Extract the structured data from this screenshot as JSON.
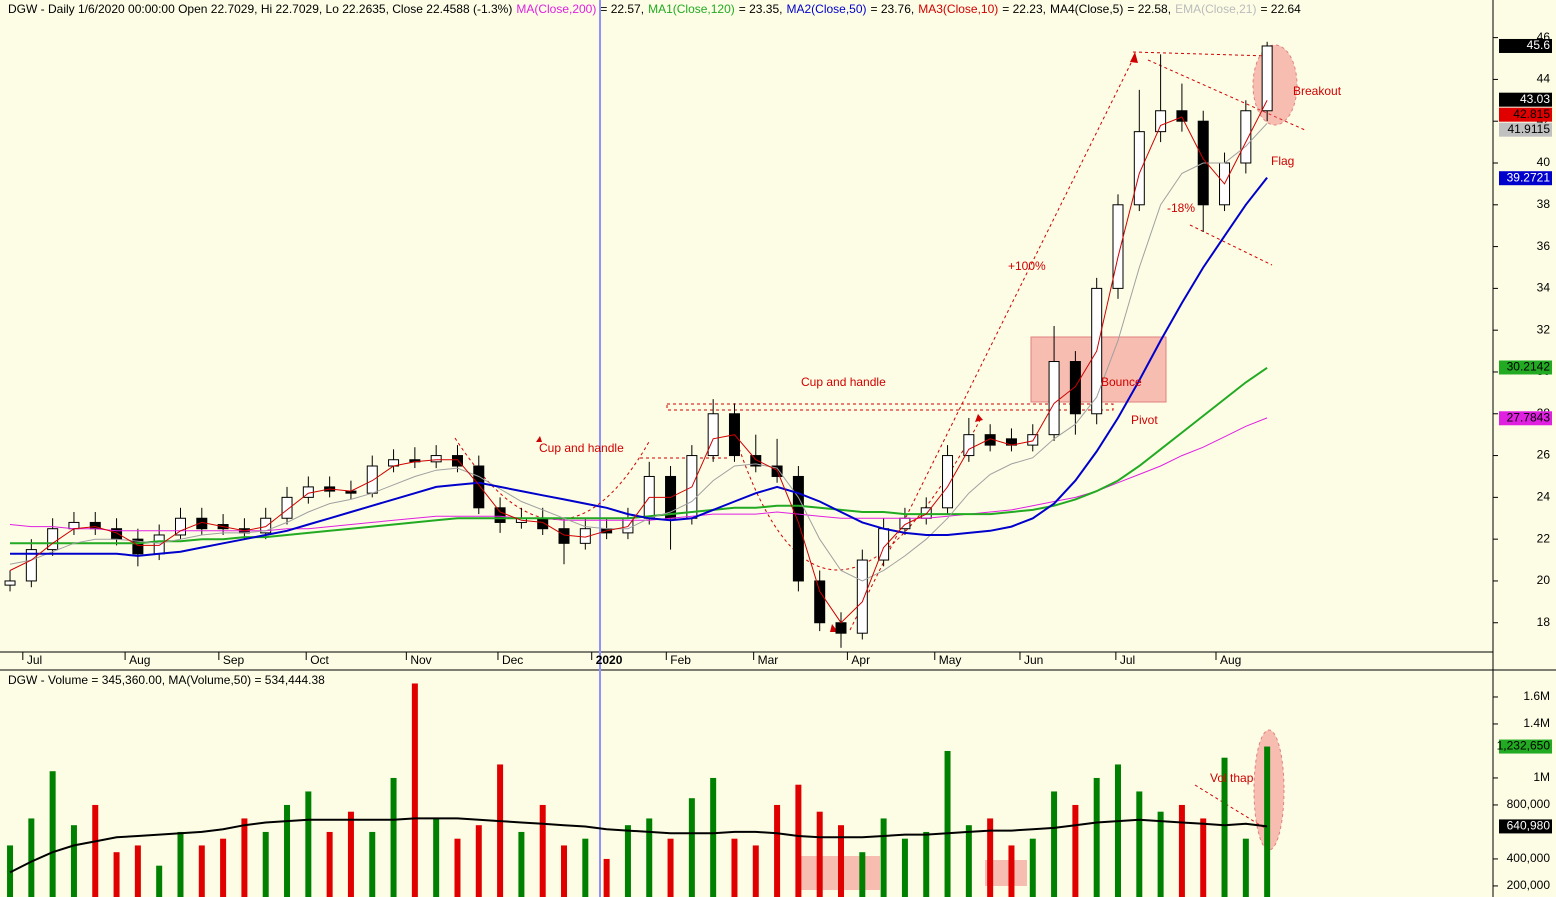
{
  "chart_data": [
    {
      "type": "candlestick",
      "header_items": [
        {
          "text": "DGW - Daily 1/6/2020 00:00:00 Open 22.7029, Hi 22.7029, Lo 22.2635, Close 22.4588 (-1.3%)",
          "color": "#000000"
        },
        {
          "text": "MA(Close,200)",
          "color": "#e020e0"
        },
        {
          "text": "= 22.57,",
          "color": "#000000"
        },
        {
          "text": "MA1(Close,120)",
          "color": "#22aa22"
        },
        {
          "text": "= 23.35,",
          "color": "#000000"
        },
        {
          "text": "MA2(Close,50)",
          "color": "#0000cc"
        },
        {
          "text": "= 23.76,",
          "color": "#000000"
        },
        {
          "text": "MA3(Close,10)",
          "color": "#d00000"
        },
        {
          "text": "= 22.23,",
          "color": "#000000"
        },
        {
          "text": "MA4(Close,5)",
          "color": "#000000"
        },
        {
          "text": "= 22.58,",
          "color": "#000000"
        },
        {
          "text": "EMA(Close,21)",
          "color": "#bbbbbb"
        },
        {
          "text": "= 22.64",
          "color": "#000000"
        }
      ],
      "x": [
        0,
        1,
        2,
        3,
        4,
        5,
        6,
        7,
        8,
        9,
        10,
        11,
        12,
        13,
        14,
        15,
        16,
        17,
        18,
        19,
        20,
        21,
        22,
        23,
        24,
        25,
        26,
        27,
        28,
        29,
        30,
        31,
        32,
        33,
        34,
        35,
        36,
        37,
        38,
        39,
        40,
        41,
        42,
        43,
        44,
        45,
        46,
        47,
        48,
        49,
        50,
        51,
        52,
        53,
        54,
        55,
        56,
        57,
        58,
        59
      ],
      "open": [
        19.8,
        20,
        21.5,
        22.5,
        22.8,
        22.5,
        22,
        21.3,
        22.2,
        23,
        22.7,
        22.5,
        22.3,
        23,
        24,
        24.5,
        24.3,
        24.2,
        25.5,
        25.8,
        25.7,
        26,
        25.5,
        23.5,
        22.8,
        23,
        22.5,
        21.8,
        22.5,
        22.3,
        23,
        25,
        23,
        26,
        28,
        26,
        25.5,
        25,
        20,
        18,
        17.5,
        21,
        22.5,
        23,
        23.5,
        26,
        27,
        26.8,
        26.5,
        27,
        30.5,
        28,
        34,
        38,
        41.5,
        42.5,
        42,
        38,
        40,
        42.5
      ],
      "high": [
        20.5,
        22,
        23,
        23.3,
        23.3,
        23,
        22.5,
        22.7,
        23.5,
        23.5,
        23.2,
        23,
        23.5,
        24.5,
        25,
        25,
        24.8,
        26,
        26.3,
        26.4,
        26.5,
        26.5,
        26,
        24,
        23.5,
        23.5,
        23,
        23,
        23,
        23.5,
        25.7,
        25.5,
        26.5,
        28.7,
        28.5,
        27,
        26.8,
        25.5,
        20.5,
        18.5,
        21.5,
        23,
        23.5,
        24,
        26.5,
        27.8,
        27.5,
        27.3,
        27.5,
        32.2,
        31,
        34.5,
        38.5,
        43.5,
        45.2,
        43.8,
        42.5,
        40.5,
        43,
        45.8
      ],
      "low": [
        19.5,
        19.7,
        21.2,
        22.2,
        22.2,
        21.7,
        20.7,
        21,
        22,
        22.2,
        22.2,
        22,
        22,
        22.7,
        23.7,
        24,
        23.9,
        24,
        25.2,
        25.4,
        25.4,
        25.2,
        23.2,
        22.3,
        22.5,
        22.2,
        20.8,
        21.5,
        22,
        22,
        22.7,
        21.5,
        22.7,
        25.7,
        25.7,
        25.2,
        24.7,
        19.5,
        17.6,
        16.8,
        17.2,
        20.7,
        22.2,
        22.7,
        23.2,
        25.7,
        26.2,
        26.2,
        26.2,
        26.7,
        27,
        27.5,
        33.5,
        37.7,
        41,
        41.5,
        36.7,
        37.7,
        39.5,
        42
      ],
      "close": [
        20,
        21.5,
        22.5,
        22.8,
        22.5,
        22,
        21.3,
        22.2,
        23,
        22.5,
        22.5,
        22.3,
        23,
        24,
        24.5,
        24.3,
        24.2,
        25.5,
        25.8,
        25.7,
        26,
        25.5,
        23.5,
        22.8,
        23,
        22.5,
        21.8,
        22.5,
        22.3,
        23,
        25,
        23,
        26,
        28,
        26,
        25.5,
        25,
        20,
        18,
        17.5,
        21,
        22.5,
        23,
        23.5,
        26,
        27,
        26.5,
        26.5,
        27,
        30.5,
        28,
        34,
        38,
        41.5,
        42.5,
        42,
        38,
        40,
        42.5,
        45.6
      ],
      "up_color": "#ffffff",
      "down_color": "#000000",
      "wick_color": "#000000",
      "series": [
        {
          "color": "#e020e0",
          "width": 1,
          "values": [
            22.7,
            22.6,
            22.6,
            22.5,
            22.5,
            22.4,
            22.4,
            22.4,
            22.4,
            22.4,
            22.4,
            22.4,
            22.4,
            22.5,
            22.5,
            22.6,
            22.7,
            22.8,
            22.9,
            23,
            23.1,
            23.1,
            23.1,
            23.1,
            23,
            23,
            22.9,
            22.9,
            22.9,
            22.9,
            22.9,
            23,
            23.1,
            23.2,
            23.2,
            23.2,
            23.3,
            23.2,
            23.1,
            23,
            23,
            23,
            23,
            23,
            23.1,
            23.2,
            23.3,
            23.4,
            23.6,
            23.8,
            24,
            24.3,
            24.7,
            25.1,
            25.5,
            26,
            26.4,
            26.9,
            27.4,
            27.8
          ]
        },
        {
          "color": "#22aa22",
          "width": 2,
          "values": [
            21.8,
            21.8,
            21.8,
            21.8,
            21.8,
            21.8,
            21.8,
            21.9,
            21.9,
            22,
            22,
            22.1,
            22.1,
            22.2,
            22.3,
            22.4,
            22.5,
            22.6,
            22.7,
            22.8,
            22.9,
            23,
            23,
            23,
            23,
            23,
            23,
            23,
            23,
            23,
            23.1,
            23.2,
            23.3,
            23.4,
            23.5,
            23.5,
            23.6,
            23.6,
            23.5,
            23.4,
            23.3,
            23.3,
            23.2,
            23.2,
            23.2,
            23.2,
            23.2,
            23.3,
            23.4,
            23.6,
            23.9,
            24.3,
            24.8,
            25.5,
            26.3,
            27.1,
            27.9,
            28.7,
            29.5,
            30.2
          ]
        },
        {
          "color": "#a0a0a0",
          "width": 1,
          "values": [
            20.8,
            21,
            21.4,
            21.8,
            22,
            22,
            21.9,
            21.8,
            22,
            22.2,
            22.3,
            22.3,
            22.4,
            22.8,
            23.3,
            23.7,
            23.9,
            24.2,
            24.6,
            25,
            25.3,
            25.4,
            25,
            24.4,
            23.8,
            23.4,
            23,
            22.6,
            22.5,
            22.5,
            23,
            23.3,
            23.8,
            24.8,
            25.5,
            25.6,
            25.4,
            24,
            22,
            20.5,
            20,
            20.5,
            21.2,
            22,
            23,
            24.2,
            25.1,
            25.6,
            25.9,
            26.8,
            27.5,
            28.8,
            31.5,
            35,
            38,
            39.5,
            40,
            40,
            40.8,
            41.9
          ]
        },
        {
          "color": "#0000cc",
          "width": 2,
          "values": [
            21.3,
            21.3,
            21.3,
            21.3,
            21.3,
            21.3,
            21.2,
            21.3,
            21.4,
            21.6,
            21.8,
            22,
            22.2,
            22.4,
            22.7,
            23,
            23.3,
            23.6,
            23.9,
            24.2,
            24.5,
            24.6,
            24.7,
            24.5,
            24.3,
            24.1,
            23.9,
            23.7,
            23.5,
            23.2,
            23,
            22.9,
            23,
            23.4,
            23.8,
            24.2,
            24.5,
            24.2,
            23.8,
            23.3,
            22.8,
            22.5,
            22.3,
            22.2,
            22.2,
            22.3,
            22.4,
            22.6,
            23,
            23.7,
            24.8,
            26.2,
            27.8,
            29.6,
            31.5,
            33.3,
            35,
            36.5,
            38,
            39.3
          ]
        },
        {
          "color": "#d00000",
          "width": 1,
          "values": [
            20.5,
            21,
            21.8,
            22.5,
            22.6,
            22.3,
            21.7,
            21.7,
            22.4,
            22.8,
            22.6,
            22.4,
            22.6,
            23.4,
            24.2,
            24.4,
            24.3,
            24.8,
            25.5,
            25.7,
            25.8,
            25.8,
            24.6,
            23.3,
            22.9,
            22.8,
            22.2,
            22.1,
            22.4,
            22.6,
            24,
            24,
            24.5,
            26.8,
            27,
            25.8,
            25.3,
            22.8,
            19.5,
            18,
            19,
            21.6,
            22.7,
            23.2,
            24.5,
            26.3,
            26.8,
            26.5,
            26.7,
            28.5,
            29.3,
            31,
            35.5,
            39.5,
            41.8,
            42.2,
            40.2,
            39,
            41,
            43
          ]
        }
      ],
      "xlim": [
        -0.33,
        69.6
      ],
      "xticks": [
        {
          "value": 0.6,
          "label": "Jul"
        },
        {
          "value": 5.4,
          "label": "Aug"
        },
        {
          "value": 9.8,
          "label": "Sep"
        },
        {
          "value": 13.9,
          "label": "Oct"
        },
        {
          "value": 18.6,
          "label": "Nov"
        },
        {
          "value": 22.9,
          "label": "Dec"
        },
        {
          "value": 27.3,
          "label": "2020"
        },
        {
          "value": 30.8,
          "label": "Feb"
        },
        {
          "value": 34.9,
          "label": "Mar"
        },
        {
          "value": 39.3,
          "label": "Apr"
        },
        {
          "value": 43.4,
          "label": "May"
        },
        {
          "value": 47.4,
          "label": "Jun"
        },
        {
          "value": 51.9,
          "label": "Jul"
        },
        {
          "value": 56.6,
          "label": "Aug"
        }
      ],
      "ylim": [
        16.6,
        47.8
      ],
      "yticks": [
        18,
        20,
        22,
        24,
        26,
        28,
        30,
        32,
        34,
        36,
        38,
        40,
        42,
        44,
        46
      ],
      "markers": [
        {
          "value": 45.6,
          "bg": "#000000",
          "fg": "#ffffff"
        },
        {
          "value": 43.03,
          "bg": "#000000",
          "fg": "#ffffff"
        },
        {
          "value": 42.815,
          "bg": "#e00000",
          "fg": "#000000"
        },
        {
          "value": 41.9115,
          "bg": "#c0c0c0",
          "fg": "#000000"
        },
        {
          "value": 39.2721,
          "bg": "#0000cc",
          "fg": "#ffffff"
        },
        {
          "value": 30.2142,
          "bg": "#22aa22",
          "fg": "#000000"
        },
        {
          "value": 27.7843,
          "bg": "#e020e0",
          "fg": "#000000"
        }
      ],
      "annotations": [
        "Cup and handle",
        "Cup and handle",
        "+100%",
        "-18%",
        "Flag",
        "Breakout",
        "Bounce",
        "Pivot"
      ]
    },
    {
      "type": "bar",
      "title": "DGW - Volume = 345,360.00, MA(Volume,50) = 534,444.38",
      "x": [
        0,
        1,
        2,
        3,
        4,
        5,
        6,
        7,
        8,
        9,
        10,
        11,
        12,
        13,
        14,
        15,
        16,
        17,
        18,
        19,
        20,
        21,
        22,
        23,
        24,
        25,
        26,
        27,
        28,
        29,
        30,
        31,
        32,
        33,
        34,
        35,
        36,
        37,
        38,
        39,
        40,
        41,
        42,
        43,
        44,
        45,
        46,
        47,
        48,
        49,
        50,
        51,
        52,
        53,
        54,
        55,
        56,
        57,
        58,
        59
      ],
      "values": [
        500000,
        700000,
        1050000,
        650000,
        800000,
        450000,
        500000,
        350000,
        600000,
        500000,
        550000,
        700000,
        600000,
        800000,
        900000,
        600000,
        750000,
        600000,
        1000000,
        1700000,
        700000,
        550000,
        650000,
        1100000,
        600000,
        800000,
        500000,
        550000,
        400000,
        650000,
        700000,
        550000,
        850000,
        1000000,
        550000,
        500000,
        800000,
        950000,
        750000,
        650000,
        450000,
        700000,
        550000,
        600000,
        1200000,
        650000,
        700000,
        500000,
        550000,
        900000,
        800000,
        1000000,
        1100000,
        900000,
        750000,
        800000,
        700000,
        1150000,
        550000,
        1232650
      ],
      "up_color": "#008000",
      "down_color": "#e00000",
      "series": [
        {
          "color": "#000000",
          "width": 2,
          "values": [
            300000,
            380000,
            450000,
            500000,
            530000,
            560000,
            570000,
            580000,
            590000,
            600000,
            620000,
            650000,
            670000,
            680000,
            690000,
            690000,
            690000,
            690000,
            690000,
            700000,
            700000,
            700000,
            690000,
            680000,
            670000,
            660000,
            650000,
            640000,
            620000,
            610000,
            600000,
            590000,
            590000,
            590000,
            600000,
            600000,
            590000,
            570000,
            560000,
            560000,
            560000,
            570000,
            580000,
            580000,
            590000,
            600000,
            610000,
            610000,
            620000,
            630000,
            650000,
            670000,
            680000,
            690000,
            680000,
            670000,
            660000,
            650000,
            660000,
            640980
          ]
        }
      ],
      "xlim": [
        -0.33,
        69.6
      ],
      "ylim": [
        118000,
        1785000
      ],
      "yticks": [
        {
          "value": 200000,
          "label": "200,000"
        },
        {
          "value": 400000,
          "label": "400,000"
        },
        {
          "value": 800000,
          "label": "800,000"
        },
        {
          "value": 1000000,
          "label": "1M"
        },
        {
          "value": 1400000,
          "label": "1.4M"
        },
        {
          "value": 1600000,
          "label": "1.6M"
        }
      ],
      "markers": [
        {
          "value": 1232650,
          "label": "1,232,650",
          "bg": "#22aa22",
          "fg": "#000000"
        },
        {
          "value": 640980,
          "label": "640,980",
          "bg": "#000000",
          "fg": "#ffffff"
        }
      ],
      "annotations": [
        "Vol thap"
      ]
    }
  ]
}
